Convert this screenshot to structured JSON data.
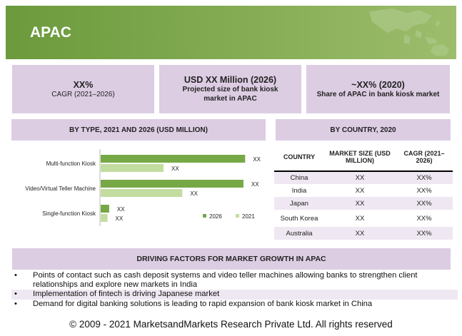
{
  "header": {
    "title": "APAC"
  },
  "stats": [
    {
      "big": "XX%",
      "small": "CAGR (2021–2026)"
    },
    {
      "big": "USD XX Million (2026)",
      "small": "Projected size of bank kiosk market in APAC"
    },
    {
      "big": "~XX% (2020)",
      "small": "Share of APAC in bank kiosk market"
    }
  ],
  "bar_section": {
    "title": "BY TYPE, 2021 AND 2026 (USD MILLION)"
  },
  "country_section": {
    "title": "BY COUNTRY, 2020",
    "headers": [
      "COUNTRY",
      "MARKET SIZE (USD MILLION)",
      "CAGR (2021–2026)"
    ],
    "rows": [
      [
        "China",
        "XX",
        "XX%"
      ],
      [
        "India",
        "XX",
        "XX%"
      ],
      [
        "Japan",
        "XX",
        "XX%"
      ],
      [
        "South Korea",
        "XX",
        "XX%"
      ],
      [
        "Australia",
        "XX",
        "XX%"
      ]
    ]
  },
  "drivers": {
    "title": "DRIVING FACTORS FOR MARKET GROWTH IN APAC",
    "items": [
      "Points of contact such as cash deposit systems and video teller machines allowing banks to strengthen client relationships and explore new markets in India",
      "Implementation of fintech is driving Japanese market",
      "Demand for digital banking solutions is leading to rapid expansion of bank kiosk market in China"
    ]
  },
  "footer": {
    "text": "© 2009 - 2021 MarketsandMarkets Research Private Ltd. All rights reserved"
  },
  "colors": {
    "series_2026": "#77a846",
    "series_2021": "#c3dca0",
    "header_green": "#7aa548",
    "panel_lavender": "#dccde3"
  },
  "chart_data": {
    "type": "bar",
    "orientation": "horizontal",
    "categories": [
      "Multi-function Kiosk",
      "Video/Virtual Teller Machine",
      "Single-function Kiosk"
    ],
    "series": [
      {
        "name": "2026",
        "values": [
          85,
          84,
          5
        ],
        "labels": [
          "XX",
          "XX",
          "XX"
        ]
      },
      {
        "name": "2021",
        "values": [
          37,
          48,
          4
        ],
        "labels": [
          "XX",
          "XX",
          "XX"
        ]
      }
    ],
    "legend": "bottom-right",
    "grid": false,
    "xlim": [
      0,
      100
    ]
  }
}
